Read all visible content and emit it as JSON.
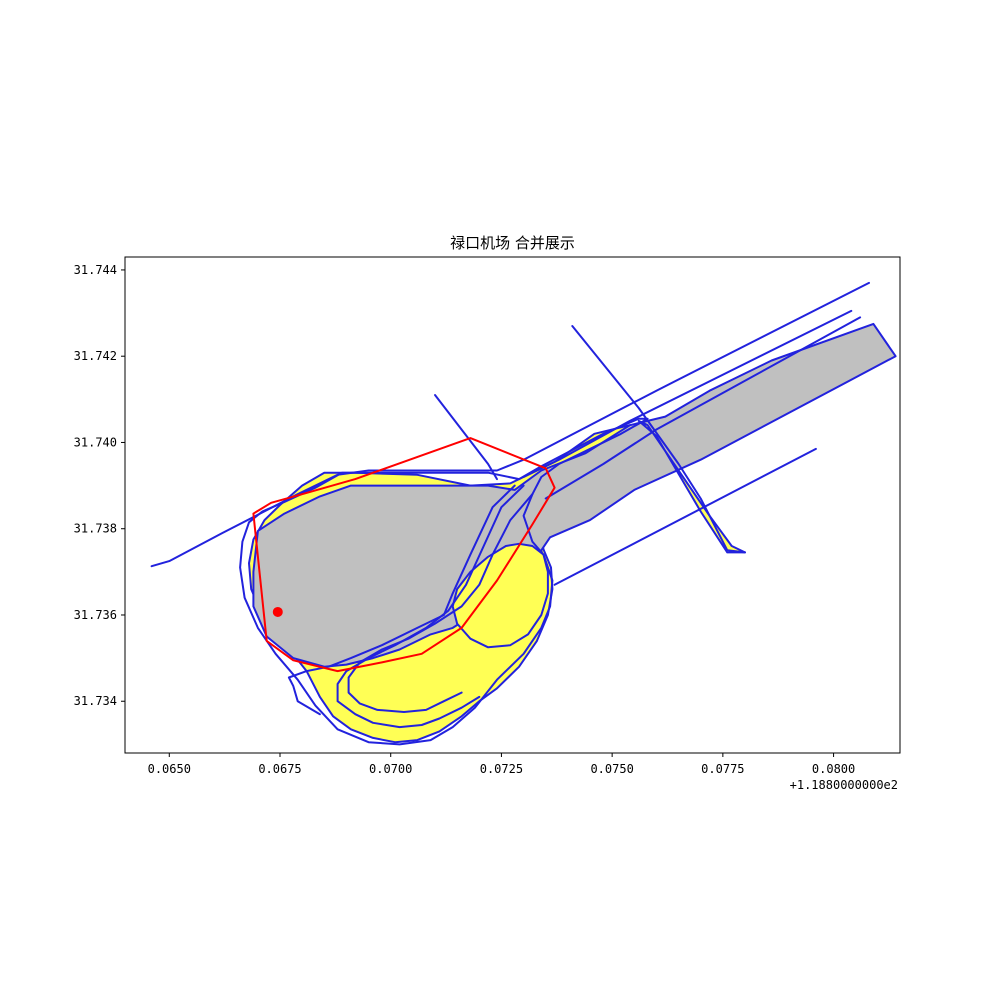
{
  "chart_data": {
    "type": "map",
    "title": "禄口机场 合并展示",
    "xlabel": "",
    "ylabel": "",
    "x_offset_label": "+1.1880000000e2",
    "xlim": [
      0.064,
      0.0815
    ],
    "ylim": [
      31.7328,
      31.7443
    ],
    "x_ticks": [
      {
        "value": 0.065,
        "label": "0.0650"
      },
      {
        "value": 0.0675,
        "label": "0.0675"
      },
      {
        "value": 0.07,
        "label": "0.0700"
      },
      {
        "value": 0.0725,
        "label": "0.0725"
      },
      {
        "value": 0.075,
        "label": "0.0750"
      },
      {
        "value": 0.0775,
        "label": "0.0775"
      },
      {
        "value": 0.08,
        "label": "0.0800"
      }
    ],
    "y_ticks": [
      {
        "value": 31.734,
        "label": "31.734"
      },
      {
        "value": 31.736,
        "label": "31.736"
      },
      {
        "value": 31.738,
        "label": "31.738"
      },
      {
        "value": 31.74,
        "label": "31.740"
      },
      {
        "value": 31.742,
        "label": "31.742"
      },
      {
        "value": 31.744,
        "label": "31.744"
      }
    ],
    "colors": {
      "fill_gray": "#c0c0c0",
      "fill_yellow": "#ffff55",
      "stroke_blue": "#2222dd",
      "stroke_red": "#ff0000"
    },
    "shapes": [
      {
        "id": "yellow-outer-zone",
        "fill": "#ffff55",
        "stroke": "#2222dd",
        "closed": true,
        "points": [
          [
            0.0675,
            31.73855
          ],
          [
            0.06715,
            31.7382
          ],
          [
            0.0669,
            31.73775
          ],
          [
            0.0668,
            31.7372
          ],
          [
            0.06685,
            31.7366
          ],
          [
            0.0671,
            31.736
          ],
          [
            0.0676,
            31.73535
          ],
          [
            0.0681,
            31.7347
          ],
          [
            0.0684,
            31.7341
          ],
          [
            0.0687,
            31.73365
          ],
          [
            0.0691,
            31.73335
          ],
          [
            0.0696,
            31.73315
          ],
          [
            0.0701,
            31.73305
          ],
          [
            0.0706,
            31.7331
          ],
          [
            0.0711,
            31.7333
          ],
          [
            0.0716,
            31.73365
          ],
          [
            0.072,
            31.734
          ],
          [
            0.0724,
            31.7343
          ],
          [
            0.0729,
            31.7348
          ],
          [
            0.0733,
            31.7354
          ],
          [
            0.07355,
            31.736
          ],
          [
            0.07365,
            31.7366
          ],
          [
            0.07362,
            31.7371
          ],
          [
            0.07345,
            31.73752
          ],
          [
            0.07338,
            31.7379
          ],
          [
            0.0734,
            31.7383
          ],
          [
            0.0736,
            31.73845
          ],
          [
            0.0748,
            31.73935
          ],
          [
            0.0758,
            31.7401
          ],
          [
            0.0754,
            31.7404
          ],
          [
            0.0746,
            31.7402
          ],
          [
            0.0737,
            31.73955
          ],
          [
            0.0727,
            31.73905
          ],
          [
            0.0718,
            31.739
          ],
          [
            0.0706,
            31.73925
          ],
          [
            0.0692,
            31.7393
          ],
          [
            0.0685,
            31.7393
          ],
          [
            0.068,
            31.739
          ]
        ]
      },
      {
        "id": "gray-runway-area",
        "fill": "#c0c0c0",
        "stroke": "#2222dd",
        "closed": true,
        "points": [
          [
            0.067,
            31.73795
          ],
          [
            0.0676,
            31.73835
          ],
          [
            0.0684,
            31.73875
          ],
          [
            0.0691,
            31.739
          ],
          [
            0.0706,
            31.739
          ],
          [
            0.0722,
            31.739
          ],
          [
            0.0728,
            31.7389
          ],
          [
            0.0734,
            31.73935
          ],
          [
            0.0744,
            31.73975
          ],
          [
            0.0754,
            31.7404
          ],
          [
            0.0762,
            31.7406
          ],
          [
            0.0772,
            31.7412
          ],
          [
            0.0786,
            31.7419
          ],
          [
            0.0809,
            31.74275
          ],
          [
            0.0814,
            31.742
          ],
          [
            0.077,
            31.7396
          ],
          [
            0.0755,
            31.7389
          ],
          [
            0.0745,
            31.7382
          ],
          [
            0.0736,
            31.7378
          ],
          [
            0.0734,
            31.7375
          ],
          [
            0.0735,
            31.7371
          ],
          [
            0.0731,
            31.7375
          ],
          [
            0.0724,
            31.73725
          ],
          [
            0.0721,
            31.73685
          ],
          [
            0.0719,
            31.7363
          ],
          [
            0.0717,
            31.7359
          ],
          [
            0.0714,
            31.7357
          ],
          [
            0.0709,
            31.73555
          ],
          [
            0.0702,
            31.7352
          ],
          [
            0.0696,
            31.735
          ],
          [
            0.069,
            31.73485
          ],
          [
            0.0685,
            31.7348
          ],
          [
            0.0678,
            31.735
          ],
          [
            0.0672,
            31.7355
          ],
          [
            0.0669,
            31.7362
          ],
          [
            0.0669,
            31.737
          ]
        ]
      },
      {
        "id": "yellow-inner-oval",
        "fill": "#ffff55",
        "stroke": "#2222dd",
        "closed": true,
        "points": [
          [
            0.0729,
            31.73765
          ],
          [
            0.0732,
            31.7376
          ],
          [
            0.07345,
            31.7374
          ],
          [
            0.07355,
            31.737
          ],
          [
            0.07355,
            31.7365
          ],
          [
            0.0734,
            31.736
          ],
          [
            0.0731,
            31.73555
          ],
          [
            0.0727,
            31.7353
          ],
          [
            0.0722,
            31.73525
          ],
          [
            0.0718,
            31.73545
          ],
          [
            0.0715,
            31.7358
          ],
          [
            0.0714,
            31.7362
          ],
          [
            0.0715,
            31.7366
          ],
          [
            0.0718,
            31.737
          ],
          [
            0.0722,
            31.73735
          ],
          [
            0.0726,
            31.7376
          ]
        ]
      },
      {
        "id": "yellow-diagonal-strip",
        "fill": "#ffff55",
        "stroke": "#2222dd",
        "closed": true,
        "points": [
          [
            0.0756,
            31.7405
          ],
          [
            0.076,
            31.74015
          ],
          [
            0.077,
            31.7384
          ],
          [
            0.0776,
            31.73745
          ],
          [
            0.078,
            31.73745
          ],
          [
            0.0777,
            31.7376
          ],
          [
            0.0772,
            31.7383
          ],
          [
            0.0764,
            31.7395
          ],
          [
            0.0758,
            31.7404
          ]
        ]
      }
    ],
    "lines": [
      {
        "id": "outer-boundary-blue",
        "stroke": "#2222dd",
        "closed": true,
        "points": [
          [
            0.0668,
            31.73815
          ],
          [
            0.0671,
            31.7384
          ],
          [
            0.0676,
            31.73862
          ],
          [
            0.0683,
            31.73895
          ],
          [
            0.0689,
            31.7393
          ],
          [
            0.0705,
            31.7393
          ],
          [
            0.0722,
            31.7393
          ],
          [
            0.0729,
            31.73915
          ],
          [
            0.0734,
            31.73945
          ],
          [
            0.0748,
            31.7402
          ],
          [
            0.0756,
            31.74055
          ],
          [
            0.0758,
            31.74055
          ],
          [
            0.0752,
            31.7402
          ],
          [
            0.0738,
            31.7395
          ],
          [
            0.0734,
            31.7392
          ],
          [
            0.0732,
            31.7388
          ],
          [
            0.073,
            31.7383
          ],
          [
            0.0732,
            31.7377
          ],
          [
            0.07345,
            31.7374
          ],
          [
            0.07365,
            31.7368
          ],
          [
            0.0736,
            31.7362
          ],
          [
            0.0734,
            31.7357
          ],
          [
            0.073,
            31.7351
          ],
          [
            0.0724,
            31.7345
          ],
          [
            0.0719,
            31.73385
          ],
          [
            0.0714,
            31.7334
          ],
          [
            0.0709,
            31.7331
          ],
          [
            0.0702,
            31.733
          ],
          [
            0.0695,
            31.73305
          ],
          [
            0.0688,
            31.73335
          ],
          [
            0.0683,
            31.7339
          ],
          [
            0.0679,
            31.7345
          ],
          [
            0.0674,
            31.7351
          ],
          [
            0.067,
            31.7357
          ],
          [
            0.0667,
            31.7364
          ],
          [
            0.0666,
            31.7371
          ],
          [
            0.06665,
            31.7377
          ]
        ]
      },
      {
        "id": "road-long-upper",
        "stroke": "#2222dd",
        "closed": false,
        "points": [
          [
            0.0646,
            31.73713
          ],
          [
            0.065,
            31.73725
          ],
          [
            0.0662,
            31.7379
          ],
          [
            0.0679,
            31.7388
          ],
          [
            0.0688,
            31.73925
          ],
          [
            0.0695,
            31.73935
          ],
          [
            0.0718,
            31.73935
          ],
          [
            0.0724,
            31.73935
          ],
          [
            0.073,
            31.7396
          ],
          [
            0.076,
            31.7412
          ],
          [
            0.0808,
            31.7437
          ]
        ]
      },
      {
        "id": "road-upper-2",
        "stroke": "#2222dd",
        "closed": false,
        "points": [
          [
            0.073,
            31.7392
          ],
          [
            0.0738,
            31.7396
          ],
          [
            0.0754,
            31.7405
          ],
          [
            0.0804,
            31.74305
          ]
        ]
      },
      {
        "id": "road-upper-3",
        "stroke": "#2222dd",
        "closed": false,
        "points": [
          [
            0.0735,
            31.7387
          ],
          [
            0.0748,
            31.7395
          ],
          [
            0.076,
            31.7403
          ],
          [
            0.0806,
            31.7429
          ]
        ]
      },
      {
        "id": "road-lower",
        "stroke": "#2222dd",
        "closed": false,
        "points": [
          [
            0.0737,
            31.7367
          ],
          [
            0.0796,
            31.73985
          ]
        ]
      },
      {
        "id": "road-diagonal-down",
        "stroke": "#2222dd",
        "closed": false,
        "points": [
          [
            0.0741,
            31.7427
          ],
          [
            0.0756,
            31.7408
          ],
          [
            0.0765,
            31.7395
          ],
          [
            0.077,
            31.7387
          ],
          [
            0.0776,
            31.7375
          ],
          [
            0.078,
            31.73745
          ]
        ]
      },
      {
        "id": "road-short-diag",
        "stroke": "#2222dd",
        "closed": false,
        "points": [
          [
            0.071,
            31.7411
          ],
          [
            0.0722,
            31.7395
          ],
          [
            0.0724,
            31.73915
          ]
        ]
      },
      {
        "id": "inner-ring-1",
        "stroke": "#2222dd",
        "closed": false,
        "points": [
          [
            0.0728,
            31.739
          ],
          [
            0.0723,
            31.7385
          ],
          [
            0.0718,
            31.7374
          ],
          [
            0.0714,
            31.7365
          ],
          [
            0.0712,
            31.736
          ],
          [
            0.0706,
            31.7357
          ],
          [
            0.0698,
            31.7353
          ],
          [
            0.0691,
            31.735
          ],
          [
            0.0686,
            31.7348
          ],
          [
            0.0681,
            31.7347
          ],
          [
            0.0677,
            31.73455
          ],
          [
            0.0678,
            31.73435
          ],
          [
            0.0679,
            31.734
          ],
          [
            0.0684,
            31.7337
          ]
        ]
      },
      {
        "id": "inner-ring-2",
        "stroke": "#2222dd",
        "closed": false,
        "points": [
          [
            0.073,
            31.739
          ],
          [
            0.0725,
            31.7385
          ],
          [
            0.0721,
            31.7376
          ],
          [
            0.0717,
            31.7367
          ],
          [
            0.0713,
            31.7361
          ],
          [
            0.0708,
            31.7357
          ],
          [
            0.0701,
            31.7353
          ],
          [
            0.0695,
            31.735
          ],
          [
            0.069,
            31.7347
          ],
          [
            0.0688,
            31.7344
          ],
          [
            0.0688,
            31.734
          ],
          [
            0.0692,
            31.7337
          ],
          [
            0.0696,
            31.7335
          ],
          [
            0.0702,
            31.7334
          ],
          [
            0.0707,
            31.73345
          ],
          [
            0.0711,
            31.7336
          ],
          [
            0.0716,
            31.73385
          ],
          [
            0.072,
            31.7341
          ]
        ]
      },
      {
        "id": "inner-ring-3",
        "stroke": "#2222dd",
        "closed": false,
        "points": [
          [
            0.0732,
            31.7388
          ],
          [
            0.0727,
            31.7382
          ],
          [
            0.0723,
            31.7374
          ],
          [
            0.072,
            31.7367
          ],
          [
            0.0716,
            31.7362
          ],
          [
            0.071,
            31.7358
          ],
          [
            0.0704,
            31.73545
          ],
          [
            0.0698,
            31.7352
          ],
          [
            0.0693,
            31.7349
          ],
          [
            0.06905,
            31.73455
          ],
          [
            0.06905,
            31.7342
          ],
          [
            0.0693,
            31.73395
          ],
          [
            0.0697,
            31.7338
          ],
          [
            0.0703,
            31.73375
          ],
          [
            0.0708,
            31.7338
          ],
          [
            0.0712,
            31.734
          ],
          [
            0.0716,
            31.7342
          ]
        ]
      },
      {
        "id": "red-boundary",
        "stroke": "#ff0000",
        "closed": true,
        "points": [
          [
            0.0669,
            31.73835
          ],
          [
            0.0673,
            31.7386
          ],
          [
            0.068,
            31.7388
          ],
          [
            0.0692,
            31.73915
          ],
          [
            0.0718,
            31.7401
          ],
          [
            0.0735,
            31.7394
          ],
          [
            0.0737,
            31.73895
          ],
          [
            0.0732,
            31.7381
          ],
          [
            0.0724,
            31.7368
          ],
          [
            0.0716,
            31.7357
          ],
          [
            0.0707,
            31.7351
          ],
          [
            0.0698,
            31.7349
          ],
          [
            0.0688,
            31.7347
          ],
          [
            0.0678,
            31.73495
          ],
          [
            0.0672,
            31.7354
          ]
        ]
      }
    ],
    "points": [
      {
        "id": "red-marker",
        "x": 0.06745,
        "y": 31.73607,
        "color": "#ff0000"
      }
    ]
  }
}
